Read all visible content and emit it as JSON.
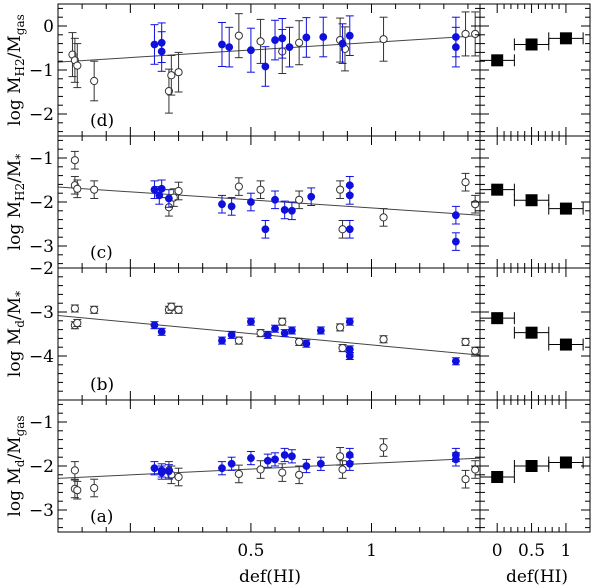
{
  "chart_data": {
    "type": "scatter",
    "colors": {
      "filled": "#1010dd",
      "open": "#333333",
      "fit": "#444444",
      "axis": "#000000",
      "binned": "#000000"
    },
    "xlabel_left": "def(HI)",
    "xlabel_right": "def(HI)",
    "left_xlim": [
      -0.3,
      1.45
    ],
    "left_xticks": [
      {
        "v": 0.5,
        "label": "0.5"
      },
      {
        "v": 1,
        "label": "1"
      }
    ],
    "right_xlim": [
      -0.25,
      1.35
    ],
    "right_xticks": [
      {
        "v": 0,
        "label": "0"
      },
      {
        "v": 0.5,
        "label": "0.5"
      },
      {
        "v": 1,
        "label": "1"
      }
    ],
    "panels": [
      {
        "id": "d",
        "tag": "(d)",
        "ylabel": "log M_H2/M_gas",
        "ylim": [
          -2.5,
          0.5
        ],
        "yticks": [
          {
            "v": 0,
            "label": "0"
          },
          {
            "v": -1,
            "label": "−1"
          },
          {
            "v": -2,
            "label": "−2"
          }
        ],
        "fit": {
          "x": [
            -0.3,
            1.45
          ],
          "y": [
            -0.82,
            -0.22
          ]
        },
        "filled": [
          {
            "x": 0.1,
            "y": -0.42,
            "e": 0.45
          },
          {
            "x": 0.13,
            "y": -0.38,
            "e": 0.45
          },
          {
            "x": 0.13,
            "y": -0.58,
            "e": 0.45
          },
          {
            "x": 0.38,
            "y": -0.42,
            "e": 0.5
          },
          {
            "x": 0.41,
            "y": -0.48,
            "e": 0.45
          },
          {
            "x": 0.5,
            "y": -0.55,
            "e": 0.5
          },
          {
            "x": 0.56,
            "y": -0.92,
            "e": 0.45
          },
          {
            "x": 0.6,
            "y": -0.32,
            "e": 0.45
          },
          {
            "x": 0.63,
            "y": -0.28,
            "e": 0.45
          },
          {
            "x": 0.66,
            "y": -0.48,
            "e": 0.45
          },
          {
            "x": 0.73,
            "y": -0.26,
            "e": 0.45
          },
          {
            "x": 0.8,
            "y": -0.25,
            "e": 0.45
          },
          {
            "x": 0.88,
            "y": -0.4,
            "e": 0.45
          },
          {
            "x": 0.91,
            "y": -0.22,
            "e": 0.45
          },
          {
            "x": 1.35,
            "y": -0.25,
            "e": 0.45
          },
          {
            "x": 1.35,
            "y": -0.48,
            "e": 0.45
          }
        ],
        "open": [
          {
            "x": -0.24,
            "y": -0.65,
            "e": 0.5
          },
          {
            "x": -0.23,
            "y": -0.78,
            "e": 0.5
          },
          {
            "x": -0.22,
            "y": -0.9,
            "e": 0.5
          },
          {
            "x": -0.15,
            "y": -1.25,
            "e": 0.45
          },
          {
            "x": 0.16,
            "y": -1.48,
            "e": 0.5
          },
          {
            "x": 0.17,
            "y": -1.12,
            "e": 0.45
          },
          {
            "x": 0.2,
            "y": -1.05,
            "e": 0.45
          },
          {
            "x": 0.45,
            "y": -0.22,
            "e": 0.5
          },
          {
            "x": 0.54,
            "y": -0.35,
            "e": 0.5
          },
          {
            "x": 0.63,
            "y": -0.58,
            "e": 0.5
          },
          {
            "x": 0.7,
            "y": -0.38,
            "e": 0.5
          },
          {
            "x": 0.87,
            "y": -0.32,
            "e": 0.5
          },
          {
            "x": 0.89,
            "y": -0.52,
            "e": 0.5
          },
          {
            "x": 1.05,
            "y": -0.3,
            "e": 0.5
          },
          {
            "x": 1.39,
            "y": -0.18,
            "e": 0.5
          },
          {
            "x": 1.43,
            "y": -0.18,
            "e": 0.5
          }
        ],
        "binned": [
          {
            "x": 0.0,
            "y": -0.78
          },
          {
            "x": 0.5,
            "y": -0.42
          },
          {
            "x": 1.0,
            "y": -0.28
          }
        ]
      },
      {
        "id": "c",
        "tag": "(c)",
        "ylabel": "log M_H2/M_*",
        "ylim": [
          -3.5,
          -0.5
        ],
        "yticks": [
          {
            "v": -1,
            "label": "−1"
          },
          {
            "v": -2,
            "label": "−2"
          },
          {
            "v": -3,
            "label": "−3"
          }
        ],
        "fit": {
          "x": [
            -0.3,
            1.45
          ],
          "y": [
            -1.66,
            -2.3
          ]
        },
        "filled": [
          {
            "x": 0.1,
            "y": -1.72,
            "e": 0.2
          },
          {
            "x": 0.12,
            "y": -1.85,
            "e": 0.2
          },
          {
            "x": 0.13,
            "y": -1.7,
            "e": 0.2
          },
          {
            "x": 0.16,
            "y": -1.92,
            "e": 0.2
          },
          {
            "x": 0.38,
            "y": -2.05,
            "e": 0.2
          },
          {
            "x": 0.42,
            "y": -2.1,
            "e": 0.2
          },
          {
            "x": 0.5,
            "y": -2.0,
            "e": 0.2
          },
          {
            "x": 0.56,
            "y": -2.62,
            "e": 0.2
          },
          {
            "x": 0.6,
            "y": -1.95,
            "e": 0.2
          },
          {
            "x": 0.64,
            "y": -2.18,
            "e": 0.2
          },
          {
            "x": 0.67,
            "y": -2.2,
            "e": 0.2
          },
          {
            "x": 0.75,
            "y": -1.88,
            "e": 0.2
          },
          {
            "x": 0.91,
            "y": -1.62,
            "e": 0.2
          },
          {
            "x": 0.91,
            "y": -1.85,
            "e": 0.2
          },
          {
            "x": 0.91,
            "y": -2.62,
            "e": 0.2
          },
          {
            "x": 1.35,
            "y": -2.3,
            "e": 0.2
          },
          {
            "x": 1.35,
            "y": -2.9,
            "e": 0.2
          }
        ],
        "open": [
          {
            "x": -0.23,
            "y": -1.05,
            "e": 0.2
          },
          {
            "x": -0.23,
            "y": -1.62,
            "e": 0.2
          },
          {
            "x": -0.22,
            "y": -1.7,
            "e": 0.2
          },
          {
            "x": -0.15,
            "y": -1.72,
            "e": 0.2
          },
          {
            "x": 0.16,
            "y": -2.12,
            "e": 0.2
          },
          {
            "x": 0.18,
            "y": -1.9,
            "e": 0.2
          },
          {
            "x": 0.2,
            "y": -1.75,
            "e": 0.2
          },
          {
            "x": 0.45,
            "y": -1.65,
            "e": 0.2
          },
          {
            "x": 0.54,
            "y": -1.72,
            "e": 0.2
          },
          {
            "x": 0.7,
            "y": -1.95,
            "e": 0.2
          },
          {
            "x": 0.87,
            "y": -1.72,
            "e": 0.2
          },
          {
            "x": 0.88,
            "y": -2.62,
            "e": 0.2
          },
          {
            "x": 1.05,
            "y": -2.35,
            "e": 0.2
          },
          {
            "x": 1.39,
            "y": -1.55,
            "e": 0.2
          },
          {
            "x": 1.43,
            "y": -2.05,
            "e": 0.2
          }
        ],
        "binned": [
          {
            "x": 0.0,
            "y": -1.72
          },
          {
            "x": 0.5,
            "y": -1.96
          },
          {
            "x": 1.0,
            "y": -2.15
          }
        ]
      },
      {
        "id": "b",
        "tag": "(b)",
        "ylabel": "log M_d/M_*",
        "ylim": [
          -5,
          -2
        ],
        "yticks": [
          {
            "v": -2,
            "label": "−2"
          },
          {
            "v": -3,
            "label": "−3"
          },
          {
            "v": -4,
            "label": "−4"
          }
        ],
        "fit": {
          "x": [
            -0.3,
            1.45
          ],
          "y": [
            -3.08,
            -3.98
          ]
        },
        "filled": [
          {
            "x": 0.1,
            "y": -3.3,
            "e": 0.08
          },
          {
            "x": 0.13,
            "y": -3.45,
            "e": 0.08
          },
          {
            "x": 0.38,
            "y": -3.65,
            "e": 0.08
          },
          {
            "x": 0.42,
            "y": -3.52,
            "e": 0.08
          },
          {
            "x": 0.5,
            "y": -3.22,
            "e": 0.08
          },
          {
            "x": 0.57,
            "y": -3.52,
            "e": 0.08
          },
          {
            "x": 0.6,
            "y": -3.38,
            "e": 0.08
          },
          {
            "x": 0.64,
            "y": -3.48,
            "e": 0.08
          },
          {
            "x": 0.67,
            "y": -3.42,
            "e": 0.08
          },
          {
            "x": 0.73,
            "y": -3.72,
            "e": 0.08
          },
          {
            "x": 0.79,
            "y": -3.42,
            "e": 0.08
          },
          {
            "x": 0.91,
            "y": -3.22,
            "e": 0.08
          },
          {
            "x": 0.91,
            "y": -3.85,
            "e": 0.08
          },
          {
            "x": 0.91,
            "y": -4.0,
            "e": 0.08
          },
          {
            "x": 1.35,
            "y": -4.12,
            "e": 0.08
          }
        ],
        "open": [
          {
            "x": -0.23,
            "y": -2.92,
            "e": 0.08
          },
          {
            "x": -0.23,
            "y": -3.3,
            "e": 0.08
          },
          {
            "x": -0.22,
            "y": -3.25,
            "e": 0.08
          },
          {
            "x": -0.15,
            "y": -2.95,
            "e": 0.08
          },
          {
            "x": 0.16,
            "y": -2.95,
            "e": 0.08
          },
          {
            "x": 0.17,
            "y": -2.88,
            "e": 0.08
          },
          {
            "x": 0.2,
            "y": -2.95,
            "e": 0.08
          },
          {
            "x": 0.45,
            "y": -3.65,
            "e": 0.08
          },
          {
            "x": 0.54,
            "y": -3.48,
            "e": 0.08
          },
          {
            "x": 0.63,
            "y": -3.22,
            "e": 0.08
          },
          {
            "x": 0.7,
            "y": -3.68,
            "e": 0.08
          },
          {
            "x": 0.87,
            "y": -3.35,
            "e": 0.08
          },
          {
            "x": 0.88,
            "y": -3.82,
            "e": 0.08
          },
          {
            "x": 1.05,
            "y": -3.62,
            "e": 0.08
          },
          {
            "x": 1.39,
            "y": -3.68,
            "e": 0.08
          },
          {
            "x": 1.43,
            "y": -3.88,
            "e": 0.08
          }
        ],
        "binned": [
          {
            "x": 0.0,
            "y": -3.14
          },
          {
            "x": 0.5,
            "y": -3.47
          },
          {
            "x": 1.0,
            "y": -3.74
          }
        ]
      },
      {
        "id": "a",
        "tag": "(a)",
        "ylabel": "log M_d/M_gas",
        "ylim": [
          -3.5,
          -0.5
        ],
        "yticks": [
          {
            "v": -1,
            "label": "−1"
          },
          {
            "v": -2,
            "label": "−2"
          },
          {
            "v": -3,
            "label": "−3"
          }
        ],
        "fit": {
          "x": [
            -0.3,
            1.45
          ],
          "y": [
            -2.28,
            -1.82
          ]
        },
        "filled": [
          {
            "x": 0.1,
            "y": -2.05,
            "e": 0.15
          },
          {
            "x": 0.13,
            "y": -2.1,
            "e": 0.15
          },
          {
            "x": 0.13,
            "y": -2.15,
            "e": 0.15
          },
          {
            "x": 0.16,
            "y": -2.12,
            "e": 0.15
          },
          {
            "x": 0.38,
            "y": -2.05,
            "e": 0.15
          },
          {
            "x": 0.42,
            "y": -1.95,
            "e": 0.15
          },
          {
            "x": 0.5,
            "y": -1.82,
            "e": 0.15
          },
          {
            "x": 0.57,
            "y": -1.88,
            "e": 0.15
          },
          {
            "x": 0.6,
            "y": -1.85,
            "e": 0.15
          },
          {
            "x": 0.64,
            "y": -1.75,
            "e": 0.15
          },
          {
            "x": 0.67,
            "y": -1.78,
            "e": 0.15
          },
          {
            "x": 0.73,
            "y": -2.0,
            "e": 0.15
          },
          {
            "x": 0.79,
            "y": -1.95,
            "e": 0.15
          },
          {
            "x": 0.91,
            "y": -1.75,
            "e": 0.15
          },
          {
            "x": 0.91,
            "y": -1.95,
            "e": 0.15
          },
          {
            "x": 1.35,
            "y": -1.75,
            "e": 0.15
          },
          {
            "x": 1.35,
            "y": -1.85,
            "e": 0.15
          }
        ],
        "open": [
          {
            "x": -0.23,
            "y": -2.1,
            "e": 0.2
          },
          {
            "x": -0.23,
            "y": -2.52,
            "e": 0.2
          },
          {
            "x": -0.22,
            "y": -2.55,
            "e": 0.2
          },
          {
            "x": -0.15,
            "y": -2.5,
            "e": 0.2
          },
          {
            "x": 0.16,
            "y": -2.1,
            "e": 0.2
          },
          {
            "x": 0.17,
            "y": -2.2,
            "e": 0.2
          },
          {
            "x": 0.2,
            "y": -2.25,
            "e": 0.2
          },
          {
            "x": 0.45,
            "y": -2.18,
            "e": 0.2
          },
          {
            "x": 0.54,
            "y": -2.08,
            "e": 0.2
          },
          {
            "x": 0.63,
            "y": -2.15,
            "e": 0.2
          },
          {
            "x": 0.7,
            "y": -2.2,
            "e": 0.2
          },
          {
            "x": 0.87,
            "y": -1.78,
            "e": 0.2
          },
          {
            "x": 0.88,
            "y": -2.08,
            "e": 0.2
          },
          {
            "x": 1.05,
            "y": -1.58,
            "e": 0.2
          },
          {
            "x": 1.39,
            "y": -2.3,
            "e": 0.2
          },
          {
            "x": 1.43,
            "y": -2.08,
            "e": 0.2
          }
        ],
        "binned": [
          {
            "x": 0.0,
            "y": -2.25
          },
          {
            "x": 0.5,
            "y": -2.0
          },
          {
            "x": 1.0,
            "y": -1.92
          }
        ]
      }
    ]
  }
}
